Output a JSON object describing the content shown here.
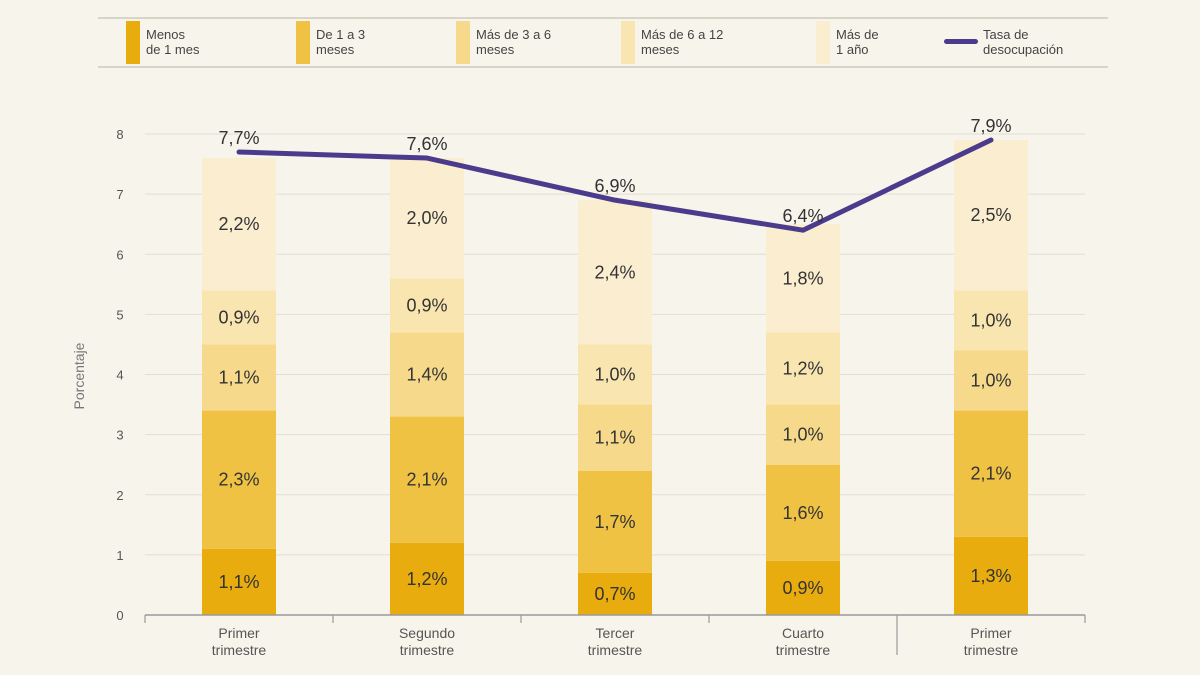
{
  "legend": {
    "items": [
      {
        "label_lines": [
          "Menos",
          "de 1 mes"
        ],
        "color": "#e8ac0e"
      },
      {
        "label_lines": [
          "De 1 a 3",
          "meses"
        ],
        "color": "#f0c244"
      },
      {
        "label_lines": [
          "Más de 3 a 6",
          "meses"
        ],
        "color": "#f6d98a"
      },
      {
        "label_lines": [
          "Más de 6 a 12",
          "meses"
        ],
        "color": "#f9e5b0"
      },
      {
        "label_lines": [
          "Más de",
          "1 año"
        ],
        "color": "#fbeed0"
      }
    ],
    "line_item": {
      "label_lines": [
        "Tasa de",
        "desocupación"
      ],
      "color": "#4a3b8c"
    }
  },
  "chart_data": {
    "type": "bar",
    "stacked": true,
    "ylabel": "Porcentaje",
    "ylim": [
      0,
      8
    ],
    "yticks": [
      0,
      1,
      2,
      3,
      4,
      5,
      6,
      7,
      8
    ],
    "grid": true,
    "categories": [
      [
        "Primer",
        "trimestre"
      ],
      [
        "Segundo",
        "trimestre"
      ],
      [
        "Tercer",
        "trimestre"
      ],
      [
        "Cuarto",
        "trimestre"
      ],
      [
        "Primer",
        "trimestre"
      ]
    ],
    "series": [
      {
        "name": "Menos de 1 mes",
        "values": [
          1.1,
          1.2,
          0.7,
          0.9,
          1.3
        ],
        "labels": [
          "1,1%",
          "1,2%",
          "0,7%",
          "0,9%",
          "1,3%"
        ],
        "color": "#e8ac0e"
      },
      {
        "name": "De 1 a 3 meses",
        "values": [
          2.3,
          2.1,
          1.7,
          1.6,
          2.1
        ],
        "labels": [
          "2,3%",
          "2,1%",
          "1,7%",
          "1,6%",
          "2,1%"
        ],
        "color": "#f0c244"
      },
      {
        "name": "Más de 3 a 6 meses",
        "values": [
          1.1,
          1.4,
          1.1,
          1.0,
          1.0
        ],
        "labels": [
          "1,1%",
          "1,4%",
          "1,1%",
          "1,0%",
          "1,0%"
        ],
        "color": "#f6d98a"
      },
      {
        "name": "Más de 6 a 12 meses",
        "values": [
          0.9,
          0.9,
          1.0,
          1.2,
          1.0
        ],
        "labels": [
          "0,9%",
          "0,9%",
          "1,0%",
          "1,2%",
          "1,0%"
        ],
        "color": "#f9e5b0"
      },
      {
        "name": "Más de 1 año",
        "values": [
          2.2,
          2.0,
          2.4,
          1.8,
          2.5
        ],
        "labels": [
          "2,2%",
          "2,0%",
          "2,4%",
          "1,8%",
          "2,5%"
        ],
        "color": "#fbeed0"
      }
    ],
    "line_series": {
      "name": "Tasa de desocupación",
      "values": [
        7.7,
        7.6,
        6.9,
        6.4,
        7.9
      ],
      "labels": [
        "7,7%",
        "7,6%",
        "6,9%",
        "6,4%",
        "7,9%"
      ],
      "color": "#4a3b8c"
    }
  }
}
